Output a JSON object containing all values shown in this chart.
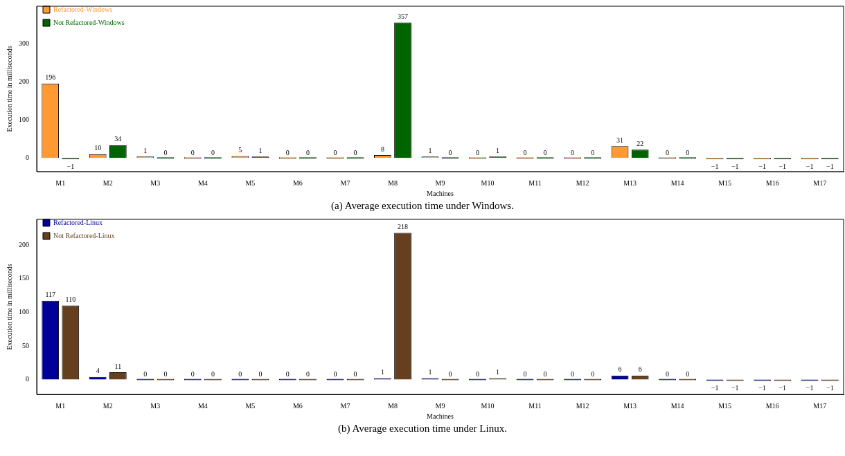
{
  "chart_data": [
    {
      "type": "bar",
      "title": "(a) Average execution time under Windows.",
      "xlabel": "Machines",
      "ylabel": "Execution time in milliseconds",
      "categories": [
        "M1",
        "M2",
        "M3",
        "M4",
        "M5",
        "M6",
        "M7",
        "M8",
        "M9",
        "M10",
        "M11",
        "M12",
        "M13",
        "M14",
        "M15",
        "M16",
        "M17"
      ],
      "series": [
        {
          "name": "Refactored-Windows",
          "color": "#ff9933",
          "values": [
            196,
            10,
            1,
            0,
            5,
            0,
            0,
            8,
            1,
            0,
            0,
            0,
            31,
            0,
            -1,
            -1,
            -1
          ]
        },
        {
          "name": "Not Refactored-Windows",
          "color": "#006400",
          "values": [
            -1,
            34,
            0,
            0,
            1,
            0,
            0,
            357,
            0,
            1,
            0,
            0,
            22,
            0,
            -1,
            -1,
            -1
          ]
        }
      ],
      "ylim": [
        -36,
        400
      ],
      "yticks": [
        0,
        100,
        200,
        300
      ],
      "grid": false,
      "legend": "top left",
      "data_labels": true
    },
    {
      "type": "bar",
      "title": "(b) Average execution time under Linux.",
      "xlabel": "Machines",
      "ylabel": "Execution time in milliseconds",
      "categories": [
        "M1",
        "M2",
        "M3",
        "M4",
        "M5",
        "M6",
        "M7",
        "M8",
        "M9",
        "M10",
        "M11",
        "M12",
        "M13",
        "M14",
        "M15",
        "M16",
        "M17"
      ],
      "series": [
        {
          "name": "Refactored-Linux",
          "color": "#000099",
          "values": [
            117,
            4,
            0,
            0,
            0,
            0,
            0,
            1,
            1,
            0,
            0,
            0,
            6,
            0,
            -1,
            -1,
            -1
          ]
        },
        {
          "name": "Not Refactored-Linux",
          "color": "#663f1f",
          "values": [
            110,
            11,
            0,
            0,
            0,
            0,
            0,
            218,
            0,
            1,
            0,
            0,
            6,
            0,
            -1,
            -1,
            -1
          ]
        }
      ],
      "ylim": [
        -22,
        238
      ],
      "yticks": [
        0,
        50,
        100,
        150,
        200
      ],
      "grid": false,
      "legend": "top left",
      "data_labels": true
    }
  ]
}
